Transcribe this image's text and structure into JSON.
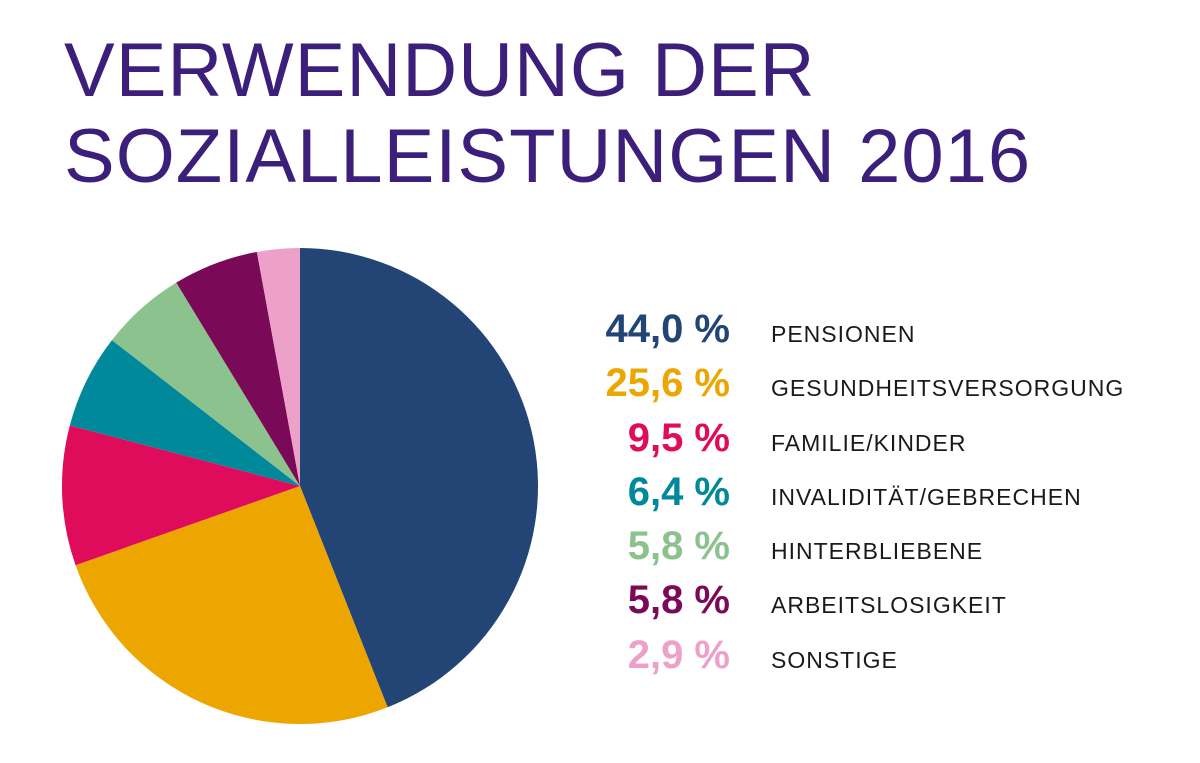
{
  "chart_data": {
    "type": "pie",
    "title_lines": [
      "VERWENDUNG DER",
      "SOZIALLEISTUNGEN 2016"
    ],
    "legend_position": "right",
    "slices": [
      {
        "label": "PENSIONEN",
        "value": 44.0,
        "display": "44,0 %",
        "color": "#234575"
      },
      {
        "label": "GESUNDHEITSVERSORGUNG",
        "value": 25.6,
        "display": "25,6 %",
        "color": "#eda500"
      },
      {
        "label": "FAMILIE/KINDER",
        "value": 9.5,
        "display": "9,5 %",
        "color": "#de0c5a"
      },
      {
        "label": "INVALIDITÄT/GEBRECHEN",
        "value": 6.4,
        "display": "6,4 %",
        "color": "#00899b"
      },
      {
        "label": "HINTERBLIEBENE",
        "value": 5.8,
        "display": "5,8 %",
        "color": "#8cc28e"
      },
      {
        "label": "ARBEITSLOSIGKEIT",
        "value": 5.8,
        "display": "5,8 %",
        "color": "#7a0a57"
      },
      {
        "label": "SONSTIGE",
        "value": 2.9,
        "display": "2,9 %",
        "color": "#eda1c9"
      }
    ]
  },
  "colors": {
    "title": "#3b1f7a",
    "label_text": "#1a1a1a"
  }
}
